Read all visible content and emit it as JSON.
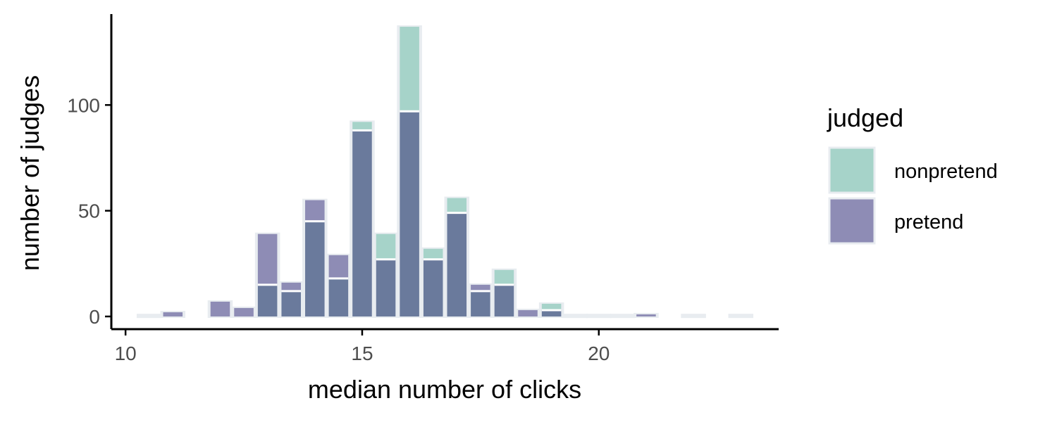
{
  "chart_data": {
    "type": "bar",
    "xlabel": "median number of clicks",
    "ylabel": "number of judges",
    "xlim": [
      9.7,
      23.8
    ],
    "ylim": [
      -6,
      143
    ],
    "x_ticks": [
      10,
      15,
      20
    ],
    "y_ticks": [
      0,
      50,
      100
    ],
    "bin_width": 1,
    "legend": {
      "title": "judged",
      "position": "right",
      "entries": [
        {
          "label": "nonpretend",
          "color": "#a6d3c9"
        },
        {
          "label": "pretend",
          "color": "#8e8cb5"
        }
      ]
    },
    "bins": [
      10.5,
      11,
      12,
      12.5,
      13,
      13.5,
      14,
      14.5,
      15,
      15.5,
      16,
      16.5,
      17,
      17.5,
      18,
      18.5,
      19,
      19.5,
      20,
      20.5,
      21,
      22,
      23
    ],
    "series": [
      {
        "name": "nonpretend",
        "color": "#a6d3c9",
        "values": [
          0,
          0,
          0,
          0,
          15,
          12,
          45,
          18,
          92,
          39,
          137,
          32,
          56,
          12,
          22,
          0,
          6,
          0,
          0,
          0,
          0,
          0,
          0
        ]
      },
      {
        "name": "pretend",
        "color": "#8e8cb5",
        "values": [
          0,
          2,
          7,
          4,
          39,
          16,
          55,
          29,
          88,
          27,
          97,
          27,
          49,
          15,
          15,
          3,
          3,
          0,
          0,
          0,
          1,
          0,
          0
        ]
      }
    ],
    "overlap_color": "#6a7a9c",
    "outline_color": "#e8ecf0"
  }
}
